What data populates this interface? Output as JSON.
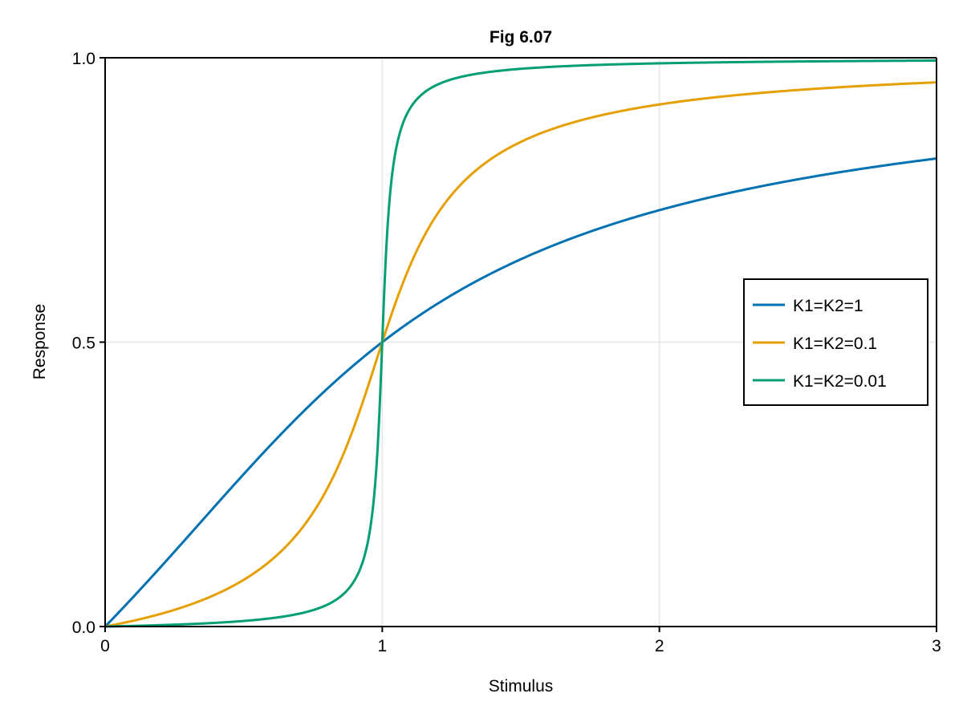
{
  "figure": {
    "title": "Fig 6.07",
    "xlabel": "Stimulus",
    "ylabel": "Response"
  },
  "colors": {
    "background": "#ffffff",
    "grid": "#e6e6e6",
    "axis": "#000000",
    "series": [
      "#0072b2",
      "#e69f00",
      "#009e73"
    ]
  },
  "chart_data": {
    "type": "line",
    "title": "Fig 6.07",
    "xlabel": "Stimulus",
    "ylabel": "Response",
    "xlim": [
      0,
      3
    ],
    "ylim": [
      0,
      1
    ],
    "xticks": [
      0,
      1,
      2,
      3
    ],
    "xtick_labels": [
      "0",
      "1",
      "2",
      "3"
    ],
    "yticks": [
      0,
      0.5,
      1
    ],
    "ytick_labels": [
      "0.0",
      "0.5",
      "1.0"
    ],
    "grid": true,
    "legend_position": "right-center (inside)",
    "x": [
      0,
      0.25,
      0.5,
      0.75,
      0.9,
      1.0,
      1.1,
      1.25,
      1.5,
      2.0,
      2.5,
      3.0
    ],
    "series": [
      {
        "name": "K1=K2=1",
        "k": 1,
        "color": "#0072b2",
        "values": [
          0,
          0.131,
          0.268,
          0.394,
          0.455,
          0.5,
          0.543,
          0.6,
          0.646,
          0.732,
          0.786,
          0.823
        ]
      },
      {
        "name": "K1=K2=0.1",
        "k": 0.1,
        "color": "#e69f00",
        "values": [
          0,
          0.029,
          0.082,
          0.2,
          0.335,
          0.5,
          0.647,
          0.759,
          0.852,
          0.917,
          0.943,
          0.957
        ]
      },
      {
        "name": "K1=K2=0.01",
        "k": 0.01,
        "color": "#009e73",
        "values": [
          0,
          0.003,
          0.01,
          0.029,
          0.081,
          0.5,
          0.913,
          0.962,
          0.98,
          0.99,
          0.993,
          0.995
        ]
      }
    ]
  },
  "legend": {
    "items": [
      {
        "label": "K1=K2=1"
      },
      {
        "label": "K1=K2=0.1"
      },
      {
        "label": "K1=K2=0.01"
      }
    ]
  }
}
